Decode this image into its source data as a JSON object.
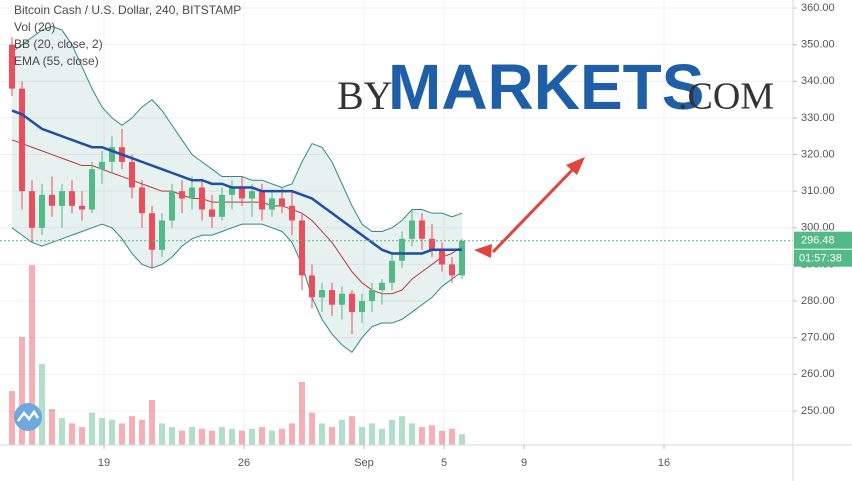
{
  "chart_data": {
    "type": "candlestick",
    "title": "Bitcoin Cash / U.S. Dollar, 240, BITSTAMP",
    "legend": [
      "Vol (20)",
      "BB (20, close, 2)",
      "EMA (55, close)"
    ],
    "watermark": {
      "by": "BY",
      "main": "MARKETS",
      "suffix": ".COM",
      "color": "#1f5fa8"
    },
    "x": [
      0,
      1,
      2,
      3,
      4,
      5,
      6,
      7,
      8,
      9,
      10,
      11,
      12,
      13,
      14,
      15,
      16,
      17,
      18,
      19,
      20,
      21,
      22,
      23,
      24,
      25,
      26,
      27,
      28,
      29,
      30,
      31,
      32,
      33,
      34,
      35,
      36,
      37,
      38,
      39,
      40,
      41,
      42,
      43,
      44,
      45
    ],
    "open": [
      350,
      338,
      310,
      300,
      309,
      306,
      310,
      306,
      305,
      316,
      318,
      322,
      318,
      311,
      304,
      294,
      302,
      310,
      308,
      311,
      305,
      303,
      309,
      311,
      308,
      310,
      305,
      308,
      306,
      302,
      287,
      281,
      283,
      279,
      282,
      277,
      280,
      283,
      285,
      291,
      297,
      302,
      297,
      294,
      290,
      287
    ],
    "high": [
      352,
      340,
      313,
      312,
      314,
      312,
      313,
      310,
      318,
      321,
      325,
      327,
      320,
      313,
      306,
      304,
      312,
      313,
      314,
      313,
      309,
      311,
      313,
      314,
      312,
      312,
      310,
      311,
      310,
      304,
      290,
      285,
      285,
      284,
      283,
      282,
      285,
      286,
      293,
      299,
      305,
      304,
      301,
      296,
      292,
      297
    ],
    "low": [
      336,
      305,
      296,
      298,
      303,
      300,
      304,
      302,
      304,
      312,
      315,
      316,
      308,
      300,
      289,
      292,
      300,
      304,
      305,
      302,
      300,
      302,
      305,
      306,
      303,
      302,
      303,
      304,
      298,
      283,
      278,
      277,
      276,
      275,
      271,
      274,
      277,
      279,
      283,
      289,
      295,
      294,
      292,
      288,
      285,
      286
    ],
    "close": [
      338,
      310,
      300,
      309,
      306,
      310,
      306,
      305,
      316,
      318,
      322,
      318,
      311,
      304,
      294,
      302,
      310,
      308,
      311,
      305,
      303,
      309,
      311,
      308,
      310,
      305,
      308,
      306,
      302,
      287,
      281,
      283,
      279,
      282,
      277,
      280,
      283,
      285,
      291,
      297,
      302,
      297,
      294,
      290,
      287,
      296.48
    ],
    "up_color": "#53b987",
    "down_color": "#eb4d5c",
    "volume": {
      "values": [
        30,
        60,
        100,
        45,
        20,
        15,
        12,
        10,
        18,
        15,
        14,
        12,
        16,
        14,
        25,
        12,
        10,
        8,
        10,
        9,
        8,
        10,
        9,
        8,
        9,
        10,
        8,
        9,
        12,
        35,
        18,
        12,
        10,
        14,
        16,
        10,
        12,
        9,
        14,
        16,
        12,
        10,
        11,
        8,
        9,
        6
      ],
      "vlim": [
        0,
        100
      ]
    },
    "bb": {
      "upper": [
        348,
        350,
        352,
        354,
        355,
        354,
        350,
        344,
        338,
        333,
        330,
        328,
        330,
        333,
        335,
        332,
        328,
        324,
        320,
        318,
        316,
        314,
        314,
        314,
        313,
        313,
        312,
        311,
        312,
        318,
        323,
        322,
        318,
        312,
        306,
        301,
        299,
        299,
        300,
        302,
        305,
        305,
        304,
        304,
        303,
        304
      ],
      "basis": [
        324,
        323,
        322,
        321,
        320,
        319,
        318,
        317,
        317,
        316,
        315,
        314,
        313,
        312,
        311,
        310,
        310,
        309,
        308,
        308,
        307,
        307,
        307,
        307,
        307,
        307,
        306,
        306,
        305,
        304,
        302,
        299,
        296,
        292,
        288,
        285,
        283,
        282,
        282,
        283,
        286,
        288,
        290,
        292,
        293,
        295
      ],
      "lower": [
        300,
        298,
        296,
        295,
        296,
        297,
        298,
        299,
        300,
        301,
        300,
        297,
        293,
        290,
        289,
        290,
        292,
        295,
        297,
        298,
        298,
        299,
        300,
        301,
        301,
        301,
        300,
        299,
        296,
        290,
        281,
        275,
        271,
        268,
        266,
        270,
        273,
        274,
        274,
        275,
        277,
        279,
        281,
        284,
        286,
        288
      ],
      "color": "#2e8c80",
      "basis_color": "#b83a3a",
      "fill": "rgba(46,140,128,0.12)"
    },
    "ema": {
      "values": [
        332,
        331,
        329,
        327,
        326,
        325,
        324,
        323,
        322,
        322,
        321,
        320,
        319,
        318,
        317,
        316,
        315,
        314,
        313,
        313,
        312,
        312,
        311,
        311,
        311,
        310,
        310,
        310,
        310,
        309,
        308,
        306,
        304,
        302,
        300,
        298,
        296,
        294,
        293,
        293,
        293,
        293,
        294,
        294,
        294,
        294
      ],
      "color": "#1f4ea3"
    },
    "last_price": 296.48,
    "countdown": "01:57:38",
    "xlim": [
      -1.2,
      78.1
    ],
    "xticks": [
      {
        "value": 9.2,
        "label": "19"
      },
      {
        "value": 23.2,
        "label": "26"
      },
      {
        "value": 35.2,
        "label": "Sep"
      },
      {
        "value": 43.2,
        "label": "5"
      },
      {
        "value": 51.2,
        "label": "9"
      },
      {
        "value": 65.2,
        "label": "16"
      }
    ],
    "ylim": [
      240.7,
      362.2
    ],
    "yticks": [
      {
        "value": 250,
        "label": "250.00"
      },
      {
        "value": 260,
        "label": "260.00"
      },
      {
        "value": 270,
        "label": "270.00"
      },
      {
        "value": 280,
        "label": "280.00"
      },
      {
        "value": 290,
        "label": "290.00"
      },
      {
        "value": 300,
        "label": "300.00"
      },
      {
        "value": 310,
        "label": "310.00"
      },
      {
        "value": 320,
        "label": "320.00"
      },
      {
        "value": 330,
        "label": "330.00"
      },
      {
        "value": 340,
        "label": "340.00"
      },
      {
        "value": 350,
        "label": "350.00"
      },
      {
        "value": 360,
        "label": "360.00"
      }
    ],
    "grid": true
  }
}
